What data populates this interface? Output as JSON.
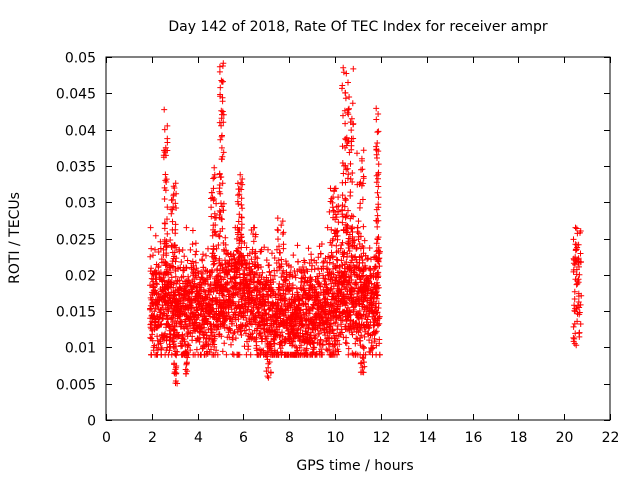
{
  "chart_data": {
    "type": "scatter",
    "title": "Day 142 of 2018, Rate Of TEC Index for receiver ampr",
    "xlabel": "GPS time / hours",
    "ylabel": "ROTI / TECUs",
    "xlim": [
      0,
      22
    ],
    "ylim": [
      0,
      0.05
    ],
    "x_ticks": [
      0,
      2,
      4,
      6,
      8,
      10,
      12,
      14,
      16,
      18,
      20,
      22
    ],
    "y_ticks": [
      0,
      0.005,
      0.01,
      0.015,
      0.02,
      0.025,
      0.03,
      0.035,
      0.04,
      0.045,
      0.05
    ],
    "x_tick_labels": [
      "0",
      "2",
      "4",
      "6",
      "8",
      "10",
      "12",
      "14",
      "16",
      "18",
      "20",
      "22"
    ],
    "y_tick_labels": [
      "0",
      "0.005",
      "0.01",
      "0.015",
      "0.02",
      "0.025",
      "0.03",
      "0.035",
      "0.04",
      "0.045",
      "0.05"
    ],
    "marker": "+",
    "color": "#ff0000",
    "seed": 142,
    "x_start": 1.92,
    "x_end": 11.95,
    "x_step": 0.0085,
    "base_profile": [
      [
        1.9,
        0.0155
      ],
      [
        2.5,
        0.0165
      ],
      [
        3.2,
        0.015
      ],
      [
        3.8,
        0.016
      ],
      [
        4.5,
        0.015
      ],
      [
        5.0,
        0.017
      ],
      [
        5.5,
        0.0175
      ],
      [
        6.0,
        0.018
      ],
      [
        6.6,
        0.016
      ],
      [
        7.2,
        0.0145
      ],
      [
        7.8,
        0.015
      ],
      [
        8.5,
        0.0148
      ],
      [
        9.2,
        0.015
      ],
      [
        9.8,
        0.016
      ],
      [
        10.4,
        0.0175
      ],
      [
        11.0,
        0.017
      ],
      [
        11.5,
        0.0165
      ],
      [
        11.95,
        0.0165
      ]
    ],
    "spread": 0.0038,
    "y_min_clip": 0.0055,
    "y_max_clip": 0.05,
    "spike_clusters": [
      {
        "center": 2.6,
        "width": 0.08,
        "count": 40,
        "y_low": 0.02,
        "y_high": 0.044
      },
      {
        "center": 2.95,
        "width": 0.12,
        "count": 30,
        "y_low": 0.022,
        "y_high": 0.033
      },
      {
        "center": 3.05,
        "width": 0.08,
        "count": 14,
        "y_low": 0.005,
        "y_high": 0.0095
      },
      {
        "center": 3.5,
        "width": 0.06,
        "count": 12,
        "y_low": 0.0063,
        "y_high": 0.0095
      },
      {
        "center": 4.7,
        "width": 0.12,
        "count": 30,
        "y_low": 0.022,
        "y_high": 0.036
      },
      {
        "center": 5.05,
        "width": 0.1,
        "count": 50,
        "y_low": 0.025,
        "y_high": 0.05
      },
      {
        "center": 5.85,
        "width": 0.1,
        "count": 35,
        "y_low": 0.022,
        "y_high": 0.034
      },
      {
        "center": 7.6,
        "width": 0.15,
        "count": 14,
        "y_low": 0.022,
        "y_high": 0.028
      },
      {
        "center": 7.1,
        "width": 0.1,
        "count": 10,
        "y_low": 0.0058,
        "y_high": 0.009
      },
      {
        "center": 9.95,
        "width": 0.2,
        "count": 40,
        "y_low": 0.022,
        "y_high": 0.032
      },
      {
        "center": 10.55,
        "width": 0.25,
        "count": 90,
        "y_low": 0.024,
        "y_high": 0.05
      },
      {
        "center": 11.1,
        "width": 0.15,
        "count": 30,
        "y_low": 0.022,
        "y_high": 0.038
      },
      {
        "center": 11.2,
        "width": 0.08,
        "count": 12,
        "y_low": 0.0065,
        "y_high": 0.01
      },
      {
        "center": 11.85,
        "width": 0.06,
        "count": 40,
        "y_low": 0.022,
        "y_high": 0.043
      }
    ],
    "segment2": {
      "x_start": 20.4,
      "x_end": 20.75,
      "count": 70,
      "y_low": 0.01,
      "y_high": 0.0275
    }
  }
}
